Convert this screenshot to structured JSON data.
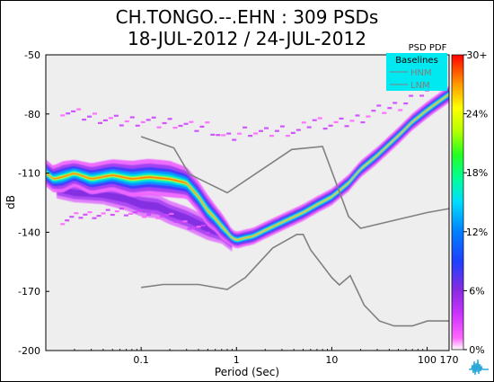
{
  "chart_data": {
    "type": "heatmap",
    "title": "CH.TONGO.--.EHN : 309 PSDs",
    "subtitle": "18-JUL-2012 / 24-JUL-2012",
    "xlabel": "Period (Sec)",
    "ylabel": "dB",
    "x_scale": "log",
    "xlim": [
      0.01,
      170
    ],
    "ylim": [
      -200,
      -50
    ],
    "x_ticks": [
      "0.1",
      "1",
      "10",
      "100",
      "170"
    ],
    "x_tick_values": [
      0.1,
      1,
      10,
      100,
      170
    ],
    "y_ticks": [
      "-50",
      "-80",
      "-110",
      "-140",
      "-170",
      "-200"
    ],
    "y_tick_values": [
      -50,
      -80,
      -110,
      -140,
      -170,
      -200
    ],
    "legend": {
      "title": "Baselines",
      "entries": [
        "HNM",
        "LNM"
      ],
      "placement": "top-right",
      "background": "#00e8f0"
    },
    "colorbar": {
      "title": "PSD PDF",
      "ticks": [
        "30+",
        "24%",
        "18%",
        "12%",
        "6%",
        "0%"
      ],
      "tick_values": [
        30,
        24,
        18,
        12,
        6,
        0
      ]
    },
    "plot_background": "#eeeeee",
    "baseline_color": "#808080",
    "hnm_x": [
      0.1,
      0.22,
      0.32,
      0.8,
      3.8,
      8,
      15,
      20,
      100,
      170
    ],
    "hnm_y": [
      -91.5,
      -97.2,
      -110.5,
      -120,
      -98,
      -96.5,
      -132,
      -138,
      -130,
      -128
    ],
    "lnm_x": [
      0.1,
      0.17,
      0.4,
      0.8,
      1.24,
      2.4,
      4.3,
      5,
      6,
      10,
      12,
      15.6,
      21.9,
      31.6,
      45,
      70,
      101,
      170
    ],
    "lnm_y": [
      -168,
      -166.5,
      -166.5,
      -169,
      -163,
      -148,
      -141.1,
      -141.1,
      -149,
      -163,
      -166.7,
      -162,
      -177,
      -185,
      -187.5,
      -187.5,
      -185,
      -185
    ],
    "series": [
      {
        "role": "mode",
        "x": [
          0.0101,
          0.012,
          0.015,
          0.02,
          0.03,
          0.05,
          0.08,
          0.12,
          0.2,
          0.3,
          0.4,
          0.5,
          0.6,
          0.7,
          0.8,
          0.9,
          1.0,
          1.2,
          1.5,
          2.0,
          3.0,
          5.0,
          7.0,
          10,
          15,
          20,
          30,
          50,
          70,
          100,
          130,
          170
        ],
        "y": [
          -110,
          -113,
          -112,
          -110,
          -113,
          -111,
          -113,
          -112,
          -113,
          -115,
          -122,
          -129,
          -133,
          -137,
          -140,
          -143,
          -144,
          -143,
          -142,
          -139,
          -135,
          -130,
          -126,
          -122,
          -115,
          -108,
          -101,
          -91,
          -84,
          -78,
          -74,
          -70
        ],
        "spread_db": [
          5,
          5,
          6,
          5,
          6,
          6,
          7,
          7,
          7,
          6,
          6,
          6,
          5,
          5,
          4,
          3,
          3,
          3,
          3,
          3,
          3,
          3,
          3,
          3,
          3,
          3,
          3,
          3,
          3,
          3,
          3,
          3
        ]
      },
      {
        "role": "secondary",
        "x": [
          0.013,
          0.02,
          0.04,
          0.07,
          0.1,
          0.15,
          0.2,
          0.3,
          0.5,
          0.7,
          0.9
        ],
        "y": [
          -118,
          -120,
          -121,
          -123,
          -126,
          -127,
          -130,
          -133,
          -138,
          -141,
          -145
        ],
        "spread_db": [
          4,
          4,
          4,
          5,
          5,
          5,
          5,
          5,
          5,
          4,
          4
        ]
      },
      {
        "role": "high_outliers",
        "x": [
          0.015,
          0.025,
          0.04,
          0.06,
          0.1,
          0.15,
          0.22,
          0.35,
          0.5,
          0.8,
          1.3,
          2,
          3,
          4.5,
          6.5,
          9,
          13,
          20,
          28,
          40,
          55,
          75,
          100
        ],
        "y": [
          -78,
          -81,
          -82,
          -84,
          -83,
          -85,
          -84,
          -87,
          -86,
          -93,
          -88,
          -90,
          -88,
          -89,
          -83,
          -85,
          -85,
          -82,
          -79,
          -77,
          -75,
          -70,
          -68
        ]
      },
      {
        "role": "low_streak",
        "x": [
          0.015,
          0.025,
          0.04,
          0.06,
          0.1,
          0.15,
          0.2,
          0.3,
          0.5
        ],
        "y": [
          -134,
          -131,
          -131,
          -129,
          -131,
          -131,
          -132,
          -136,
          -139
        ]
      }
    ]
  }
}
